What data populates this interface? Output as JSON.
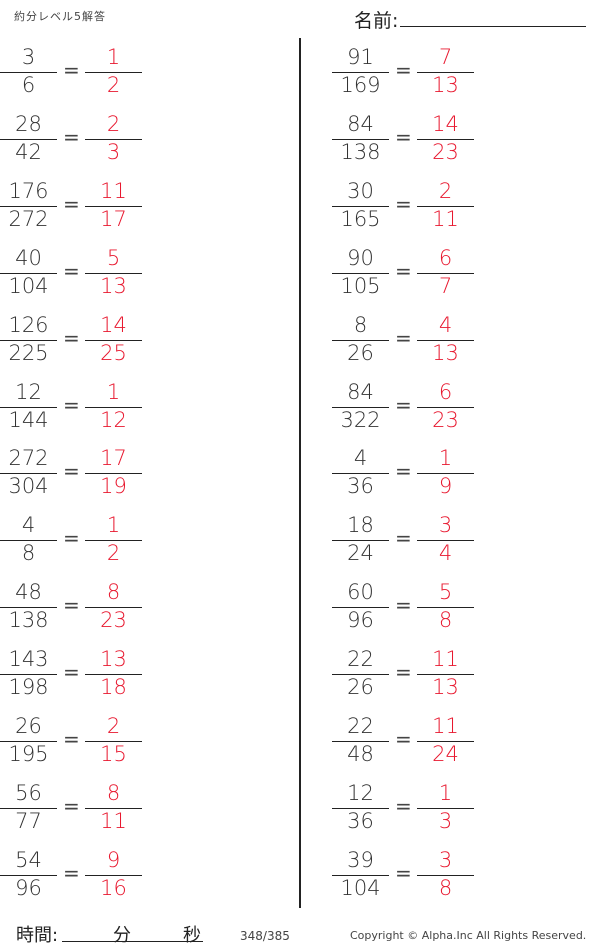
{
  "header": {
    "title": "約分レベル5解答",
    "name_label": "名前:"
  },
  "left": [
    {
      "n": "3",
      "d": "6",
      "an": "1",
      "ad": "2"
    },
    {
      "n": "28",
      "d": "42",
      "an": "2",
      "ad": "3"
    },
    {
      "n": "176",
      "d": "272",
      "an": "11",
      "ad": "17"
    },
    {
      "n": "40",
      "d": "104",
      "an": "5",
      "ad": "13"
    },
    {
      "n": "126",
      "d": "225",
      "an": "14",
      "ad": "25"
    },
    {
      "n": "12",
      "d": "144",
      "an": "1",
      "ad": "12"
    },
    {
      "n": "272",
      "d": "304",
      "an": "17",
      "ad": "19"
    },
    {
      "n": "4",
      "d": "8",
      "an": "1",
      "ad": "2"
    },
    {
      "n": "48",
      "d": "138",
      "an": "8",
      "ad": "23"
    },
    {
      "n": "143",
      "d": "198",
      "an": "13",
      "ad": "18"
    },
    {
      "n": "26",
      "d": "195",
      "an": "2",
      "ad": "15"
    },
    {
      "n": "56",
      "d": "77",
      "an": "8",
      "ad": "11"
    },
    {
      "n": "54",
      "d": "96",
      "an": "9",
      "ad": "16"
    }
  ],
  "right": [
    {
      "n": "91",
      "d": "169",
      "an": "7",
      "ad": "13"
    },
    {
      "n": "84",
      "d": "138",
      "an": "14",
      "ad": "23"
    },
    {
      "n": "30",
      "d": "165",
      "an": "2",
      "ad": "11"
    },
    {
      "n": "90",
      "d": "105",
      "an": "6",
      "ad": "7"
    },
    {
      "n": "8",
      "d": "26",
      "an": "4",
      "ad": "13"
    },
    {
      "n": "84",
      "d": "322",
      "an": "6",
      "ad": "23"
    },
    {
      "n": "4",
      "d": "36",
      "an": "1",
      "ad": "9"
    },
    {
      "n": "18",
      "d": "24",
      "an": "3",
      "ad": "4"
    },
    {
      "n": "60",
      "d": "96",
      "an": "5",
      "ad": "8"
    },
    {
      "n": "22",
      "d": "26",
      "an": "11",
      "ad": "13"
    },
    {
      "n": "22",
      "d": "48",
      "an": "11",
      "ad": "24"
    },
    {
      "n": "12",
      "d": "36",
      "an": "1",
      "ad": "3"
    },
    {
      "n": "39",
      "d": "104",
      "an": "3",
      "ad": "8"
    }
  ],
  "equals": "=",
  "footer": {
    "time_label": "時間:",
    "minutes": "分",
    "seconds": "秒",
    "page": "348/385",
    "copyright": "Copyright ©  Alpha.Inc All Rights Reserved."
  },
  "colors": {
    "answer": "#e8182f",
    "text": "#333333"
  }
}
